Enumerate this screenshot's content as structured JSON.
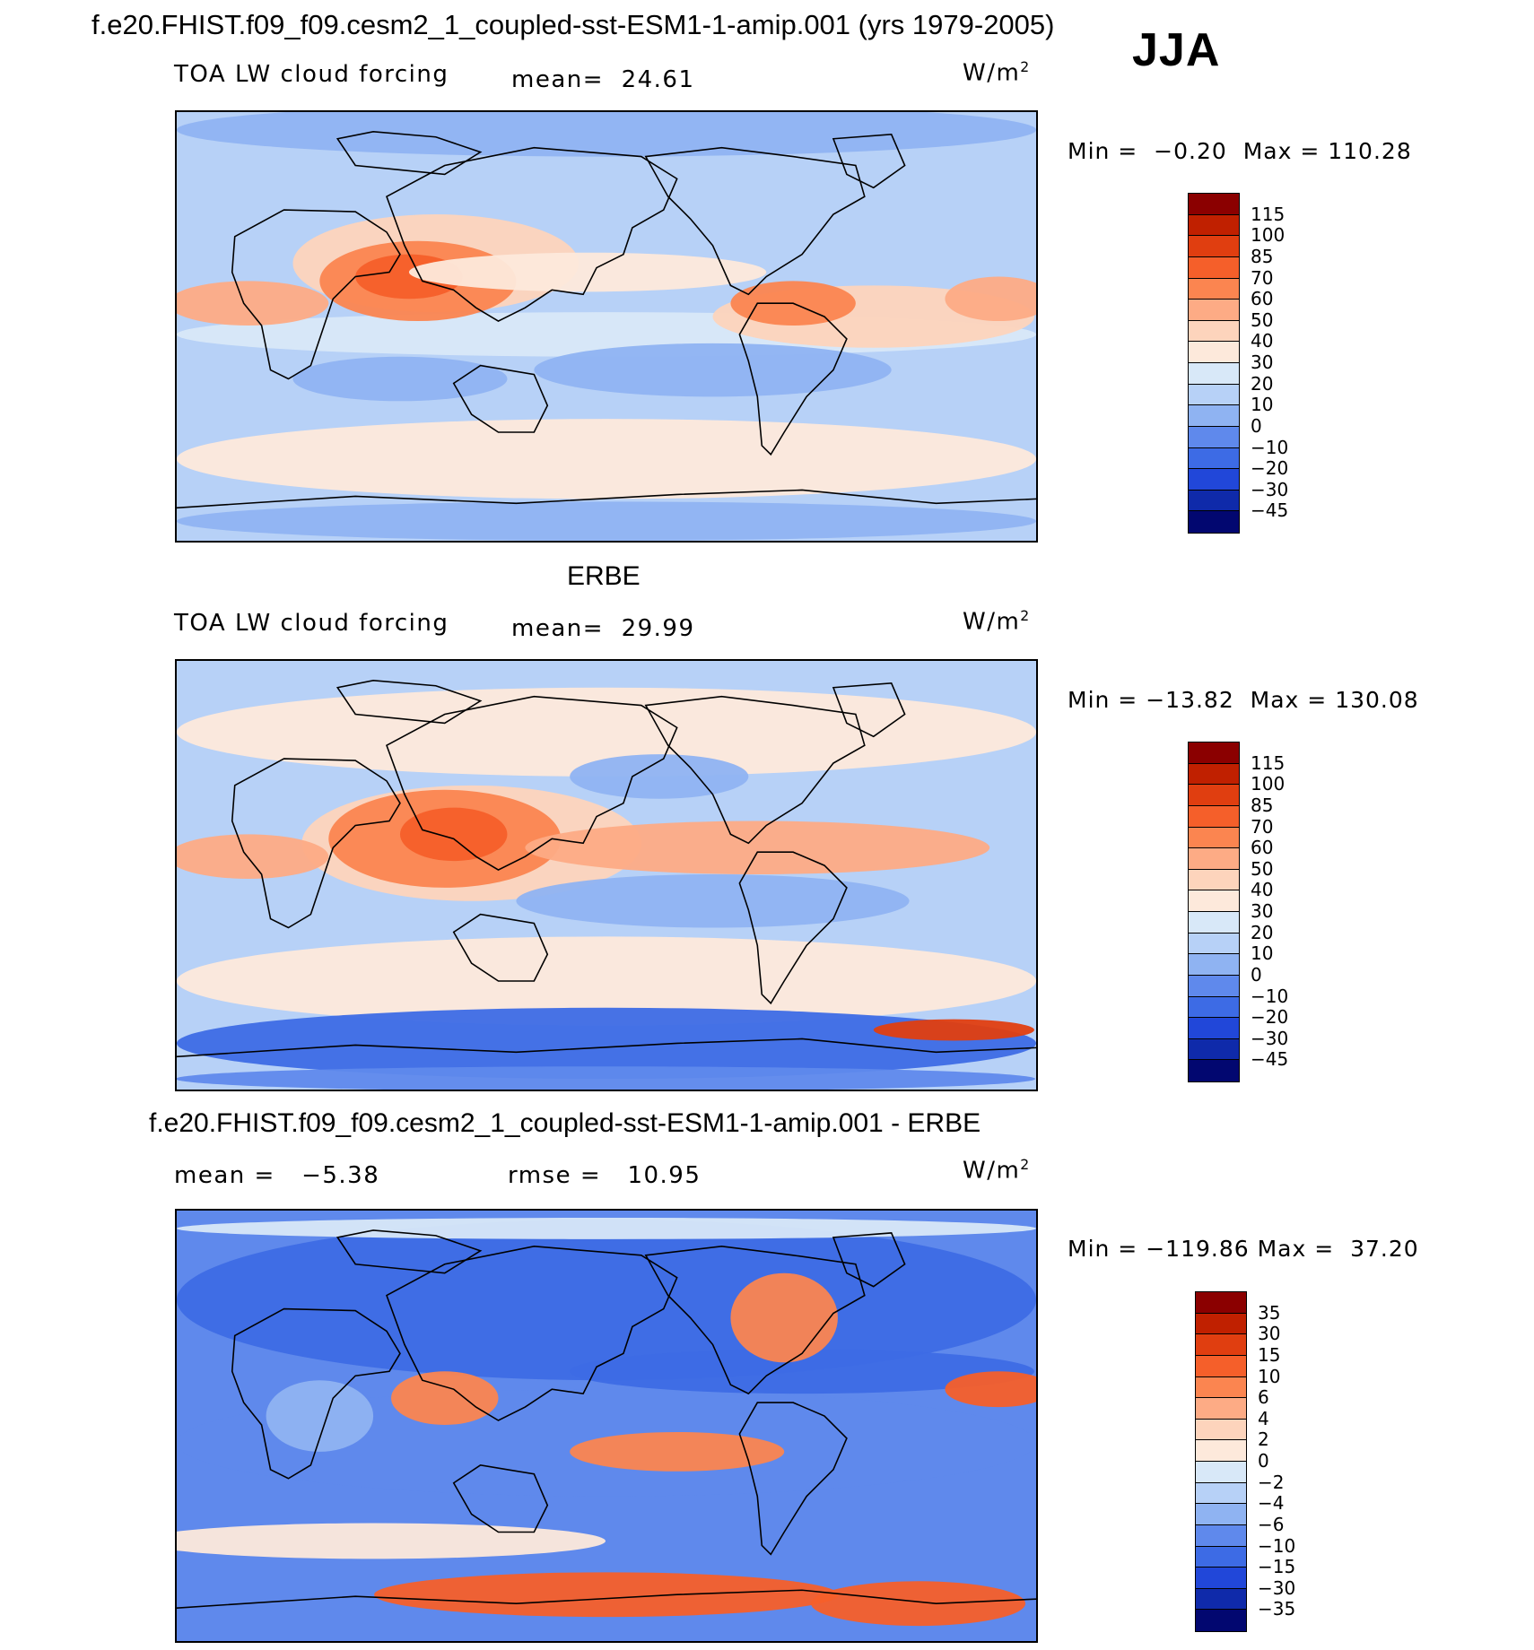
{
  "chart_data": [
    {
      "type": "heatmap",
      "title": "f.e20.FHIST.f09_f09.cesm2_1_coupled-sst-ESM1-1-amip.001 (yrs 1979-2005)",
      "season": "JJA",
      "variable": "TOA LW cloud forcing",
      "mean_text": "mean=",
      "mean": "24.61",
      "units": "W/m",
      "units_exp": "2",
      "min_text": "Min =",
      "min": "−0.20",
      "max_text": "Max =",
      "max": "110.28",
      "levels": [
        "115",
        "100",
        "85",
        "70",
        "60",
        "50",
        "40",
        "30",
        "20",
        "10",
        "0",
        "−10",
        "−20",
        "−30",
        "−45"
      ],
      "colors": [
        "#8b0000",
        "#c02000",
        "#e03e10",
        "#f55f2a",
        "#fb8550",
        "#fdab85",
        "#fdd4bc",
        "#fde9db",
        "#d8e8f8",
        "#b7d1f7",
        "#8fb3f2",
        "#5f89ec",
        "#3d6be5",
        "#2147d9",
        "#0f2aaa",
        "#020770"
      ]
    },
    {
      "type": "heatmap",
      "title": "ERBE",
      "variable": "TOA LW cloud forcing",
      "mean_text": "mean=",
      "mean": "29.99",
      "units": "W/m",
      "units_exp": "2",
      "min_text": "Min =",
      "min": "−13.82",
      "max_text": "Max =",
      "max": "130.08",
      "levels": [
        "115",
        "100",
        "85",
        "70",
        "60",
        "50",
        "40",
        "30",
        "20",
        "10",
        "0",
        "−10",
        "−20",
        "−30",
        "−45"
      ],
      "colors": [
        "#8b0000",
        "#c02000",
        "#e03e10",
        "#f55f2a",
        "#fb8550",
        "#fdab85",
        "#fdd4bc",
        "#fde9db",
        "#d8e8f8",
        "#b7d1f7",
        "#8fb3f2",
        "#5f89ec",
        "#3d6be5",
        "#2147d9",
        "#0f2aaa",
        "#020770"
      ]
    },
    {
      "type": "heatmap",
      "title": "f.e20.FHIST.f09_f09.cesm2_1_coupled-sst-ESM1-1-amip.001 - ERBE",
      "mean_text": "mean =",
      "mean": "−5.38",
      "rmse_text": "rmse =",
      "rmse": "10.95",
      "units": "W/m",
      "units_exp": "2",
      "min_text": "Min =",
      "min": "−119.86",
      "max_text": "Max =",
      "max": "37.20",
      "levels": [
        "35",
        "30",
        "15",
        "10",
        "6",
        "4",
        "2",
        "0",
        "−2",
        "−4",
        "−6",
        "−10",
        "−15",
        "−30",
        "−35"
      ],
      "colors": [
        "#8b0000",
        "#c02000",
        "#e03e10",
        "#f55f2a",
        "#fb8550",
        "#fdab85",
        "#fdd4bc",
        "#fde9db",
        "#d8e8f8",
        "#b7d1f7",
        "#8fb3f2",
        "#5f89ec",
        "#3d6be5",
        "#2147d9",
        "#0f2aaa",
        "#020770"
      ]
    }
  ]
}
